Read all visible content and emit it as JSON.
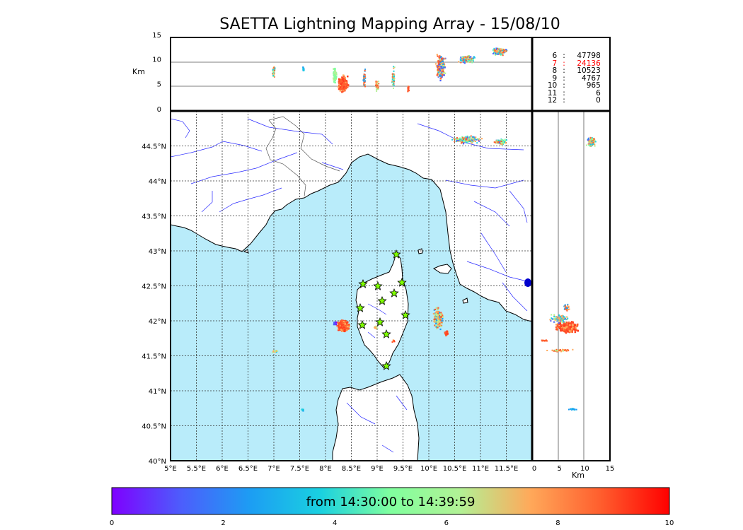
{
  "title": "SAETTA Lightning Mapping Array - 15/08/10",
  "altitude_axis": {
    "label": "Km",
    "ticks": [
      "0",
      "5",
      "10",
      "15"
    ]
  },
  "map": {
    "lat_ticks": [
      "40°N",
      "40.5°N",
      "41°N",
      "41.5°N",
      "42°N",
      "42.5°N",
      "43°N",
      "43.5°N",
      "44°N",
      "44.5°N"
    ],
    "lon_ticks": [
      "5°E",
      "5.5°E",
      "6°E",
      "6.5°E",
      "7°E",
      "7.5°E",
      "8°E",
      "8.5°E",
      "9°E",
      "9.5°E",
      "10°E",
      "10.5°E",
      "11°E",
      "11.5°E"
    ],
    "sea_color": "#b9ecfa",
    "land_color": "#ffffff",
    "station_icon": "star-icon",
    "station_color": "#7fff00"
  },
  "side_axis": {
    "label": "Km",
    "ticks": [
      "0",
      "5",
      "10",
      "15"
    ]
  },
  "station_counts": [
    {
      "n": "6",
      "sep": ":",
      "count": "47798",
      "color": "#000000"
    },
    {
      "n": "7",
      "sep": ":",
      "count": "24136",
      "color": "#ff0000"
    },
    {
      "n": "8",
      "sep": ":",
      "count": "10523",
      "color": "#000000"
    },
    {
      "n": "9",
      "sep": ":",
      "count": "4767",
      "color": "#000000"
    },
    {
      "n": "10",
      "sep": ":",
      "count": "965",
      "color": "#000000"
    },
    {
      "n": "11",
      "sep": ":",
      "count": "6",
      "color": "#000000"
    },
    {
      "n": "12",
      "sep": ":",
      "count": "0",
      "color": "#000000"
    }
  ],
  "colorbar": {
    "label": "from 14:30:00 to 14:39:59",
    "ticks": [
      "0",
      "2",
      "4",
      "6",
      "8",
      "10"
    ],
    "colormap": "rainbow"
  }
}
